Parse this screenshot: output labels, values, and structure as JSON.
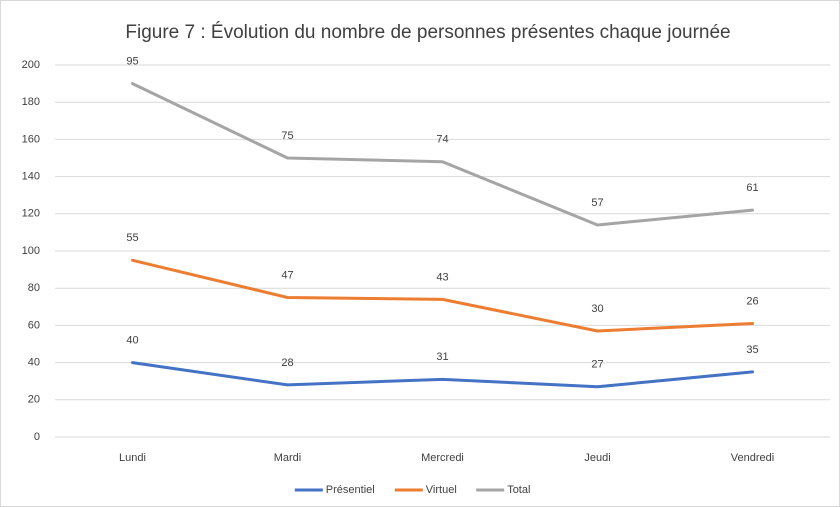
{
  "chart_data": {
    "type": "line",
    "stacked": true,
    "title": "Figure 7 : Évolution du nombre de personnes présentes chaque journée",
    "categories": [
      "Lundi",
      "Mardi",
      "Mercredi",
      "Jeudi",
      "Vendredi"
    ],
    "series": [
      {
        "name": "Présentiel",
        "color": "#4472c4",
        "values": [
          40,
          28,
          31,
          27,
          35
        ]
      },
      {
        "name": "Virtuel",
        "color": "#ed7d31",
        "values": [
          55,
          47,
          43,
          30,
          26
        ]
      },
      {
        "name": "Total",
        "color": "#a5a5a5",
        "values": [
          95,
          75,
          74,
          57,
          61
        ]
      }
    ],
    "ylim": [
      0,
      200
    ],
    "yticks": [
      0,
      20,
      40,
      60,
      80,
      100,
      120,
      140,
      160,
      180,
      200
    ],
    "grid": true,
    "legend": "bottom"
  }
}
